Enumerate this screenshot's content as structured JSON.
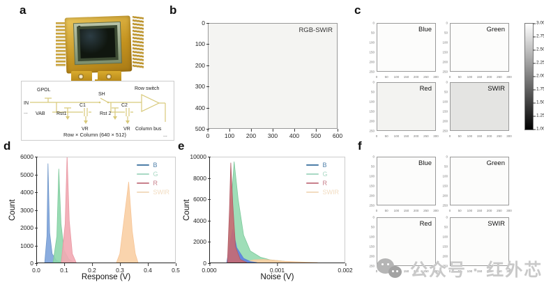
{
  "panel_labels": {
    "a": "a",
    "b": "b",
    "c": "c",
    "d": "d",
    "e": "e",
    "f": "f"
  },
  "panel_a": {
    "circuit": {
      "gpol": "GPOL",
      "in_label": "IN",
      "dots_left": "...",
      "vab": "VAB",
      "rst1": "Rst1",
      "c1": "C1",
      "sh": "SH",
      "rst2": "Rst 2",
      "c2": "C2",
      "vr_left": "VR",
      "vr_right": "VR",
      "row_switch": "Row switch",
      "column_bus": "Column bus",
      "caption": "Row × Column (640 × 512)",
      "dots_right": "..."
    }
  },
  "panel_b": {
    "title": "RGB-SWIR",
    "x_ticks": [
      "0",
      "100",
      "200",
      "300",
      "400",
      "500",
      "600"
    ],
    "y_ticks": [
      "0",
      "100",
      "200",
      "300",
      "400",
      "500"
    ],
    "bg": "#f4f4f2"
  },
  "panel_c": {
    "subpanels": [
      {
        "label": "Blue",
        "bg": "#fcfcfb"
      },
      {
        "label": "Green",
        "bg": "#fcfcfb"
      },
      {
        "label": "Red",
        "bg": "#f3f3f1"
      },
      {
        "label": "SWIR",
        "bg": "#e4e4e2"
      }
    ],
    "x_ticks": [
      "0",
      "50",
      "100",
      "150",
      "200",
      "250",
      "300"
    ],
    "y_ticks": [
      "0",
      "50",
      "100",
      "150",
      "200",
      "250"
    ],
    "colorbar_ticks": [
      "3.00",
      "2.75",
      "2.50",
      "2.25",
      "2.00",
      "1.75",
      "1.50",
      "1.25",
      "1.00"
    ]
  },
  "panel_f": {
    "subpanels": [
      {
        "label": "Blue",
        "bg": "#fcfcfb"
      },
      {
        "label": "Green",
        "bg": "#fcfcfb"
      },
      {
        "label": "Red",
        "bg": "#fcfcfb"
      },
      {
        "label": "SWIR",
        "bg": "#fcfcfb"
      }
    ],
    "x_ticks": [
      "0",
      "50",
      "100",
      "150",
      "200",
      "250",
      "300"
    ],
    "y_ticks": [
      "0",
      "50",
      "100",
      "150",
      "200",
      "250"
    ]
  },
  "watermark": {
    "text": "公众号 · 红外芯闻"
  },
  "chart_data": [
    {
      "type": "area",
      "panel": "d",
      "title": "",
      "xlabel": "Response (V)",
      "ylabel": "Count",
      "xlim": [
        0.0,
        0.5
      ],
      "ylim": [
        0,
        6000
      ],
      "x_ticks": [
        "0.0",
        "0.1",
        "0.2",
        "0.3",
        "0.4",
        "0.5"
      ],
      "y_ticks": [
        "0",
        "1000",
        "2000",
        "3000",
        "4000",
        "5000",
        "6000"
      ],
      "grid": false,
      "legend_position": "top-right",
      "legend": [
        {
          "label": "B",
          "color": "#4d7ea8"
        },
        {
          "label": "G",
          "color": "#a9d9c5"
        },
        {
          "label": "R",
          "color": "#c8808c"
        },
        {
          "label": "SWIR",
          "color": "#f2dcc0"
        }
      ],
      "series": [
        {
          "name": "B",
          "color": "#6f96c8",
          "fill": "#7da3dc",
          "opacity": 0.9,
          "peak_x": 0.04,
          "peak_count": 5650,
          "points": [
            [
              0.028,
              0
            ],
            [
              0.036,
              1500
            ],
            [
              0.04,
              5650
            ],
            [
              0.046,
              1700
            ],
            [
              0.055,
              500
            ],
            [
              0.07,
              120
            ],
            [
              0.09,
              0
            ]
          ]
        },
        {
          "name": "G",
          "color": "#7cc89a",
          "fill": "#8ed8ac",
          "opacity": 0.9,
          "peak_x": 0.08,
          "peak_count": 5350,
          "points": [
            [
              0.058,
              0
            ],
            [
              0.072,
              1500
            ],
            [
              0.079,
              5350
            ],
            [
              0.087,
              2200
            ],
            [
              0.098,
              700
            ],
            [
              0.115,
              200
            ],
            [
              0.135,
              0
            ]
          ]
        },
        {
          "name": "R",
          "color": "#e897a2",
          "fill": "#f2a9b2",
          "opacity": 0.9,
          "peak_x": 0.11,
          "peak_count": 6150,
          "points": [
            [
              0.088,
              0
            ],
            [
              0.102,
              2200
            ],
            [
              0.109,
              6150
            ],
            [
              0.117,
              2400
            ],
            [
              0.128,
              500
            ],
            [
              0.142,
              0
            ]
          ]
        },
        {
          "name": "SWIR",
          "color": "#f6c496",
          "fill": "#f9cfa4",
          "opacity": 0.9,
          "peak_x": 0.335,
          "peak_count": 4600,
          "points": [
            [
              0.288,
              0
            ],
            [
              0.3,
              500
            ],
            [
              0.332,
              4600
            ],
            [
              0.345,
              1800
            ],
            [
              0.356,
              500
            ],
            [
              0.366,
              0
            ]
          ]
        }
      ]
    },
    {
      "type": "area",
      "panel": "e",
      "title": "",
      "xlabel": "Noise (V)",
      "ylabel": "Count",
      "xlim": [
        0,
        0.002
      ],
      "ylim": [
        0,
        10000
      ],
      "x_ticks": [
        "0.000",
        "0.001",
        "0.002"
      ],
      "y_ticks": [
        "0",
        "2000",
        "4000",
        "6000",
        "8000",
        "10000"
      ],
      "grid": false,
      "legend_position": "top-right",
      "legend": [
        {
          "label": "B",
          "color": "#4d7ea8"
        },
        {
          "label": "G",
          "color": "#a9d9c5"
        },
        {
          "label": "R",
          "color": "#c8808c"
        },
        {
          "label": "SWIR",
          "color": "#f2dcc0"
        }
      ],
      "series": [
        {
          "name": "G",
          "color": "#7cc89a",
          "fill": "#8ed8ac",
          "opacity": 0.85,
          "peak_x": 0.00036,
          "peak_count": 9600,
          "points": [
            [
              0.00026,
              0
            ],
            [
              0.00032,
              6000
            ],
            [
              0.00036,
              9600
            ],
            [
              0.00042,
              6000
            ],
            [
              0.0005,
              2600
            ],
            [
              0.0006,
              1100
            ],
            [
              0.00075,
              500
            ],
            [
              0.0009,
              250
            ],
            [
              0.0011,
              120
            ],
            [
              0.00125,
              0
            ]
          ]
        },
        {
          "name": "SWIR",
          "color": "#f6c496",
          "fill": "#f9cfa4",
          "opacity": 0.9,
          "peak_x": 0.0008,
          "peak_count": 300,
          "points": [
            [
              0.0005,
              0
            ],
            [
              0.00065,
              250
            ],
            [
              0.0008,
              300
            ],
            [
              0.00095,
              220
            ],
            [
              0.0011,
              120
            ],
            [
              0.0014,
              40
            ],
            [
              0.0016,
              0
            ]
          ]
        },
        {
          "name": "B",
          "color": "#5f84d0",
          "fill": "#5f84e0",
          "opacity": 0.95,
          "peak_x": 0.00034,
          "peak_count": 3200,
          "points": [
            [
              0.00025,
              0
            ],
            [
              0.0003,
              2000
            ],
            [
              0.00034,
              3200
            ],
            [
              0.0004,
              1400
            ],
            [
              0.0005,
              400
            ],
            [
              0.0006,
              100
            ],
            [
              0.0007,
              0
            ]
          ]
        },
        {
          "name": "R",
          "color": "#b05a64",
          "fill": "#c86a72",
          "opacity": 0.9,
          "peak_x": 0.00031,
          "peak_count": 9500,
          "points": [
            [
              0.00026,
              0
            ],
            [
              0.00029,
              5000
            ],
            [
              0.00031,
              9500
            ],
            [
              0.00034,
              5500
            ],
            [
              0.00038,
              1500
            ],
            [
              0.00045,
              300
            ],
            [
              0.00055,
              0
            ]
          ]
        }
      ]
    }
  ]
}
